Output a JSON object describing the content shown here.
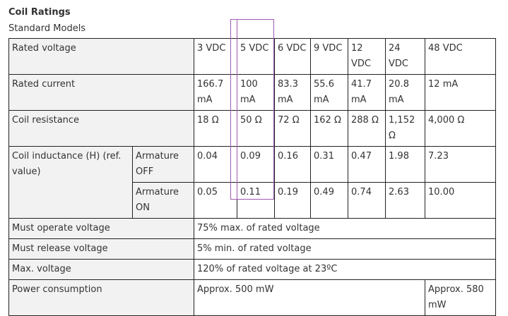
{
  "heading": "Coil Ratings",
  "subheading": "Standard Models",
  "columns": [
    "3 VDC",
    "5 VDC",
    "6 VDC",
    "9 VDC",
    "12 VDC",
    "24 VDC",
    "48 VDC"
  ],
  "rows": {
    "rated_voltage": {
      "label": "Rated voltage"
    },
    "rated_current": {
      "label": "Rated current",
      "values": [
        "166.7 mA",
        "100 mA",
        "83.3 mA",
        "55.6 mA",
        "41.7 mA",
        "20.8 mA",
        "12 mA"
      ]
    },
    "coil_resistance": {
      "label": "Coil resistance",
      "values": [
        "18 Ω",
        "50 Ω",
        "72 Ω",
        "162 Ω",
        "288 Ω",
        "1,152 Ω",
        "4,000 Ω"
      ]
    },
    "coil_inductance": {
      "label": "Coil inductance (H) (ref. value)",
      "armature_off": {
        "label": "Armature OFF",
        "values": [
          "0.04",
          "0.09",
          "0.16",
          "0.31",
          "0.47",
          "1.98",
          "7.23"
        ]
      },
      "armature_on": {
        "label": "Armature ON",
        "values": [
          "0.05",
          "0.11",
          "0.19",
          "0.49",
          "0.74",
          "2.63",
          "10.00"
        ]
      }
    },
    "must_operate": {
      "label": "Must operate voltage",
      "value": "75% max. of rated voltage"
    },
    "must_release": {
      "label": "Must release voltage",
      "value": "5% min. of rated voltage"
    },
    "max_voltage": {
      "label": "Max. voltage",
      "value": "120% of rated voltage at 23ºC"
    },
    "power_consumption": {
      "label": "Power consumption",
      "value": "Approx. 500 mW",
      "value_48": "Approx. 580 mW"
    }
  },
  "colors": {
    "label_bg": "#f2f2f2",
    "border": "#222222",
    "highlight": "#a05ab0"
  }
}
